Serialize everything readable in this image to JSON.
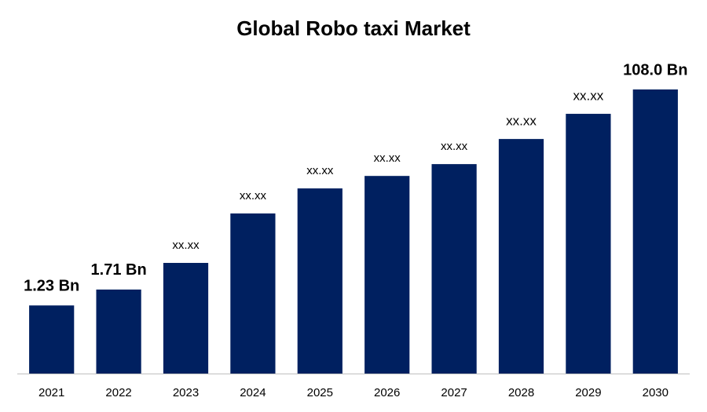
{
  "chart_data": {
    "type": "bar",
    "title": "Global Robo taxi Market",
    "categories": [
      "2021",
      "2022",
      "2023",
      "2024",
      "2025",
      "2026",
      "2027",
      "2028",
      "2029",
      "2030"
    ],
    "values": [
      1.23,
      1.71,
      2.97,
      8.27,
      13.9,
      18.0,
      23.0,
      38.7,
      65.2,
      108.0
    ],
    "value_labels": [
      "1.23 Bn",
      "1.71 Bn",
      "xx.xx",
      "xx.xx",
      "xx.xx",
      "xx.xx",
      "xx.xx",
      "xx.xx",
      "xx.xx",
      "108.0 Bn"
    ],
    "color": "#002060",
    "log_scale": true,
    "ylim": [
      0.3,
      108
    ]
  }
}
